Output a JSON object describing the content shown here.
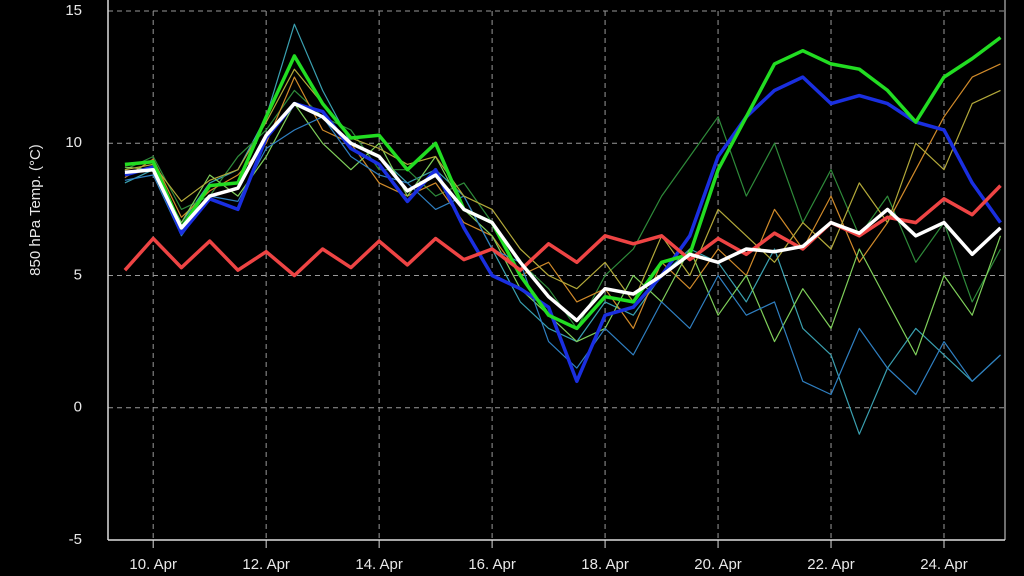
{
  "chart_data": {
    "type": "line",
    "y_label": "850 hPa Temp. (°C)",
    "x": [
      9.5,
      10,
      10.5,
      11,
      11.5,
      12,
      12.5,
      13,
      13.5,
      14,
      14.5,
      15,
      15.5,
      16,
      16.5,
      17,
      17.5,
      18,
      18.5,
      19,
      19.5,
      20,
      20.5,
      21,
      21.5,
      22,
      22.5,
      23,
      23.5,
      24,
      24.5,
      25
    ],
    "xlim": [
      9.2,
      25.08
    ],
    "xticks": [
      {
        "value": 10,
        "label": "10. Apr"
      },
      {
        "value": 12,
        "label": "12. Apr"
      },
      {
        "value": 14,
        "label": "14. Apr"
      },
      {
        "value": 16,
        "label": "16. Apr"
      },
      {
        "value": 18,
        "label": "18. Apr"
      },
      {
        "value": 20,
        "label": "20. Apr"
      },
      {
        "value": 22,
        "label": "22. Apr"
      },
      {
        "value": 24,
        "label": "24. Apr"
      }
    ],
    "ylim": [
      -5,
      15
    ],
    "yticks": [
      -5,
      0,
      5,
      10,
      15
    ],
    "grid": true,
    "series": [
      {
        "color": "#3aa0b0",
        "width": 1.2,
        "values": [
          8.5,
          9.0,
          7.0,
          8.5,
          9.0,
          11.0,
          14.5,
          12.0,
          10.0,
          9.5,
          8.5,
          9.0,
          8.0,
          6.0,
          4.0,
          3.0,
          2.5,
          4.0,
          3.5,
          5.0,
          6.0,
          5.5,
          4.0,
          6.0,
          3.0,
          2.0,
          -1.0,
          1.5,
          3.0,
          2.0,
          1.0,
          2.0
        ]
      },
      {
        "color": "#2e8b3a",
        "width": 1.2,
        "values": [
          9.0,
          9.5,
          7.5,
          8.0,
          9.5,
          10.5,
          12.0,
          11.0,
          10.5,
          9.0,
          9.0,
          8.0,
          8.5,
          7.0,
          5.5,
          4.5,
          3.0,
          5.0,
          6.0,
          8.0,
          9.5,
          11.0,
          8.0,
          10.0,
          7.0,
          9.0,
          6.5,
          8.0,
          5.5,
          7.0,
          4.0,
          6.0
        ]
      },
      {
        "color": "#d08a2a",
        "width": 1.2,
        "values": [
          8.7,
          9.4,
          7.2,
          8.2,
          8.8,
          10.0,
          12.5,
          10.5,
          10.0,
          8.5,
          8.0,
          8.5,
          7.0,
          6.5,
          5.0,
          5.5,
          4.0,
          4.5,
          3.0,
          5.5,
          4.5,
          6.0,
          5.0,
          7.5,
          6.0,
          8.0,
          5.5,
          7.0,
          9.0,
          11.0,
          12.5,
          13.0
        ]
      },
      {
        "color": "#7fcf5a",
        "width": 1.2,
        "values": [
          9.1,
          9.0,
          7.0,
          8.8,
          8.0,
          9.5,
          11.5,
          10.0,
          9.0,
          10.0,
          8.0,
          9.5,
          7.5,
          6.5,
          4.5,
          3.5,
          2.5,
          3.0,
          5.0,
          4.0,
          6.0,
          3.5,
          5.0,
          2.5,
          4.5,
          3.0,
          6.0,
          4.0,
          2.0,
          5.0,
          3.5,
          6.5
        ]
      },
      {
        "color": "#2f7fc1",
        "width": 1.2,
        "values": [
          8.6,
          8.8,
          6.5,
          8.0,
          7.8,
          9.8,
          10.5,
          11.0,
          9.5,
          8.8,
          8.5,
          7.5,
          8.0,
          6.0,
          5.5,
          2.5,
          1.5,
          3.0,
          2.0,
          4.0,
          3.0,
          5.0,
          3.5,
          4.0,
          1.0,
          0.5,
          3.0,
          1.5,
          0.5,
          2.5,
          1.0,
          2.0
        ]
      },
      {
        "color": "#b3a93a",
        "width": 1.2,
        "values": [
          9.0,
          9.2,
          7.8,
          8.6,
          9.0,
          10.8,
          12.8,
          11.5,
          10.2,
          9.8,
          9.2,
          9.5,
          8.0,
          7.5,
          6.0,
          5.0,
          4.5,
          5.5,
          4.0,
          6.5,
          5.0,
          7.5,
          6.5,
          5.5,
          7.0,
          6.0,
          8.5,
          7.0,
          10.0,
          9.0,
          11.5,
          12.0
        ]
      },
      {
        "color": "#1a2fe0",
        "width": 3.5,
        "values": [
          8.8,
          9.1,
          6.6,
          7.9,
          7.5,
          10.2,
          11.5,
          11.2,
          9.8,
          9.2,
          7.8,
          9.0,
          6.8,
          5.0,
          4.5,
          3.8,
          1.0,
          3.5,
          3.8,
          5.0,
          6.5,
          9.5,
          11.0,
          12.0,
          12.5,
          11.5,
          11.8,
          11.5,
          10.8,
          10.5,
          8.5,
          7.0
        ]
      },
      {
        "color": "#22dd22",
        "width": 3.5,
        "values": [
          9.2,
          9.3,
          6.8,
          8.4,
          8.5,
          11.0,
          13.3,
          11.5,
          10.2,
          10.3,
          9.0,
          10.0,
          7.5,
          7.0,
          5.0,
          3.5,
          3.0,
          4.2,
          4.0,
          5.5,
          5.8,
          9.0,
          11.0,
          13.0,
          13.5,
          13.0,
          12.8,
          12.0,
          10.8,
          12.5,
          13.2,
          14.0
        ]
      },
      {
        "color": "#ee4444",
        "width": 3.5,
        "values": [
          5.2,
          6.4,
          5.3,
          6.3,
          5.2,
          5.9,
          5.0,
          6.0,
          5.3,
          6.3,
          5.4,
          6.4,
          5.6,
          6.0,
          5.2,
          6.2,
          5.5,
          6.5,
          6.2,
          6.5,
          5.6,
          6.4,
          5.8,
          6.6,
          6.0,
          7.0,
          6.5,
          7.2,
          7.0,
          7.9,
          7.3,
          8.4
        ]
      },
      {
        "color": "#ffffff",
        "width": 3.5,
        "values": [
          8.9,
          9.0,
          6.8,
          8.0,
          8.3,
          10.3,
          11.5,
          11.0,
          10.0,
          9.5,
          8.2,
          8.8,
          7.5,
          7.0,
          5.5,
          4.2,
          3.3,
          4.5,
          4.3,
          5.0,
          5.8,
          5.5,
          6.0,
          5.9,
          6.1,
          7.0,
          6.6,
          7.5,
          6.5,
          7.0,
          5.8,
          6.8
        ]
      }
    ]
  }
}
